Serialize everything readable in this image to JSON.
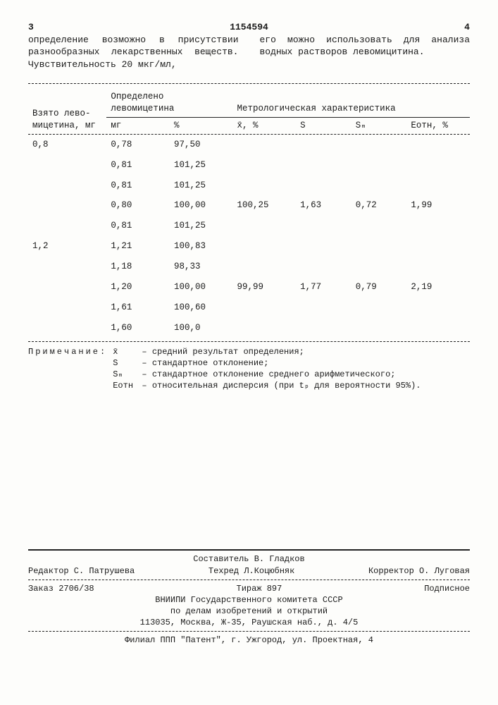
{
  "header": {
    "page_left": "3",
    "doc_number": "1154594",
    "page_right": "4",
    "para_left": "определение возможно в присутствии разнообразных лекарственных веществ. Чувствительность 20 мкг/мл,",
    "para_right": "его можно использовать для анализа водных растворов левомицитина."
  },
  "table": {
    "col1_title": "Взято лево-\nмицетина,\nмг",
    "col2_title": "Определено\nлевомицетина",
    "col2a": "мг",
    "col2b": "%",
    "col3_title": "Метрологическая характеристика",
    "m1": "x̄, %",
    "m2": "S",
    "m3": "Sₘ",
    "m4": "Eотн, %",
    "rows": [
      {
        "a": "0,8",
        "mg": "0,78",
        "pct": "97,50",
        "x": "",
        "s": "",
        "sm": "",
        "e": ""
      },
      {
        "a": "",
        "mg": "0,81",
        "pct": "101,25",
        "x": "",
        "s": "",
        "sm": "",
        "e": ""
      },
      {
        "a": "",
        "mg": "0,81",
        "pct": "101,25",
        "x": "",
        "s": "",
        "sm": "",
        "e": ""
      },
      {
        "a": "",
        "mg": "0,80",
        "pct": "100,00",
        "x": "100,25",
        "s": "1,63",
        "sm": "0,72",
        "e": "1,99"
      },
      {
        "a": "",
        "mg": "0,81",
        "pct": "101,25",
        "x": "",
        "s": "",
        "sm": "",
        "e": ""
      },
      {
        "a": "1,2",
        "mg": "1,21",
        "pct": "100,83",
        "x": "",
        "s": "",
        "sm": "",
        "e": ""
      },
      {
        "a": "",
        "mg": "1,18",
        "pct": "98,33",
        "x": "",
        "s": "",
        "sm": "",
        "e": ""
      },
      {
        "a": "",
        "mg": "1,20",
        "pct": "100,00",
        "x": "99,99",
        "s": "1,77",
        "sm": "0,79",
        "e": "2,19"
      },
      {
        "a": "",
        "mg": "1,61",
        "pct": "100,60",
        "x": "",
        "s": "",
        "sm": "",
        "e": ""
      },
      {
        "a": "",
        "mg": "1,60",
        "pct": "100,0",
        "x": "",
        "s": "",
        "sm": "",
        "e": ""
      }
    ]
  },
  "notes": {
    "label": "Примечание:",
    "items": [
      {
        "sym": "x̄",
        "text": "– средний результат определения;"
      },
      {
        "sym": "S",
        "text": "– стандартное отклонение;"
      },
      {
        "sym": "Sₘ",
        "text": "– стандартное отклонение среднего арифметического;"
      },
      {
        "sym": "Eотн",
        "text": "– относительная дисперсия (при tₚ для вероятности 95%)."
      }
    ]
  },
  "footer": {
    "compiler": "Составитель В. Гладков",
    "editor": "Редактор С. Патрушева",
    "techred": "Техред Л.Коцюбняк",
    "corrector": "Корректор О. Луговая",
    "order": "Заказ 2706/38",
    "tirazh": "Тираж 897",
    "subscr": "Подписное",
    "org1": "ВНИИПИ Государственного комитета СССР",
    "org2": "по делам изобретений и открытий",
    "addr": "113035, Москва, Ж-35, Раушская наб., д. 4/5",
    "filial": "Филиал ППП \"Патент\", г. Ужгород, ул. Проектная, 4"
  }
}
